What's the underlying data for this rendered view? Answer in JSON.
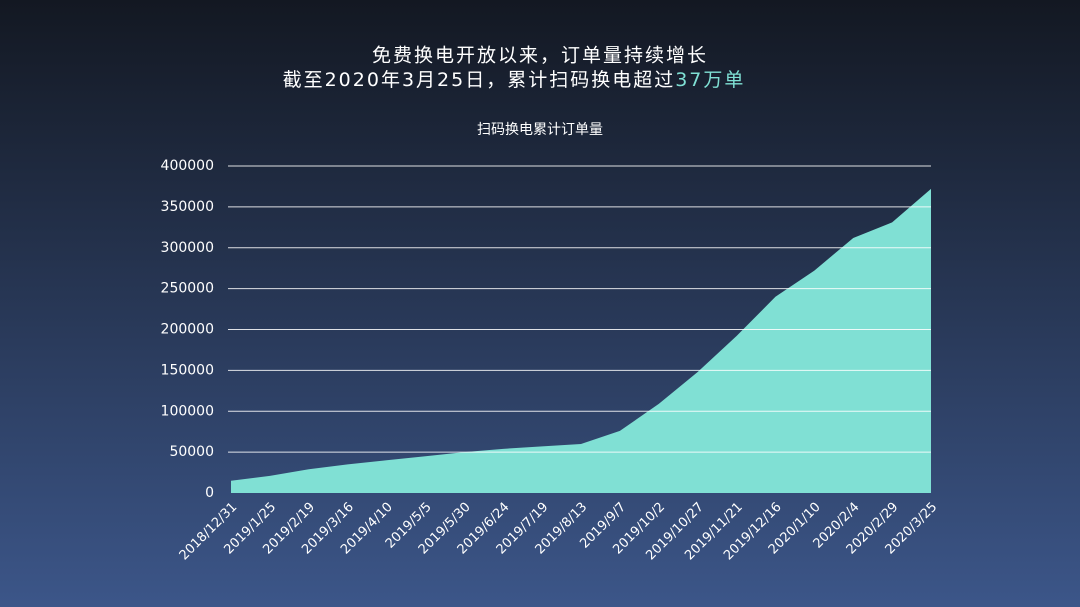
{
  "header": {
    "line1": "免费换电开放以来，订单量持续增长",
    "line2": "截至2020年3月25日，累计扫码换电超过",
    "highlight": "37万单"
  },
  "chart_data": {
    "type": "area",
    "title": "扫码换电累计订单量",
    "categories": [
      "2018/12/31",
      "2019/1/25",
      "2019/2/19",
      "2019/3/16",
      "2019/4/10",
      "2019/5/5",
      "2019/5/30",
      "2019/6/24",
      "2019/7/19",
      "2019/8/13",
      "2019/9/7",
      "2019/10/2",
      "2019/10/27",
      "2019/11/21",
      "2019/12/16",
      "2020/1/10",
      "2020/2/4",
      "2020/2/29",
      "2020/3/25"
    ],
    "values": [
      15000,
      21000,
      29000,
      35000,
      40000,
      45000,
      50000,
      54000,
      57000,
      60000,
      76000,
      109000,
      148000,
      192000,
      240000,
      272000,
      312000,
      331000,
      372000
    ],
    "color": "#80e0d4",
    "ylim": [
      0,
      400000
    ],
    "yticks": [
      0,
      50000,
      100000,
      150000,
      200000,
      250000,
      300000,
      350000,
      400000
    ],
    "grid": true
  }
}
